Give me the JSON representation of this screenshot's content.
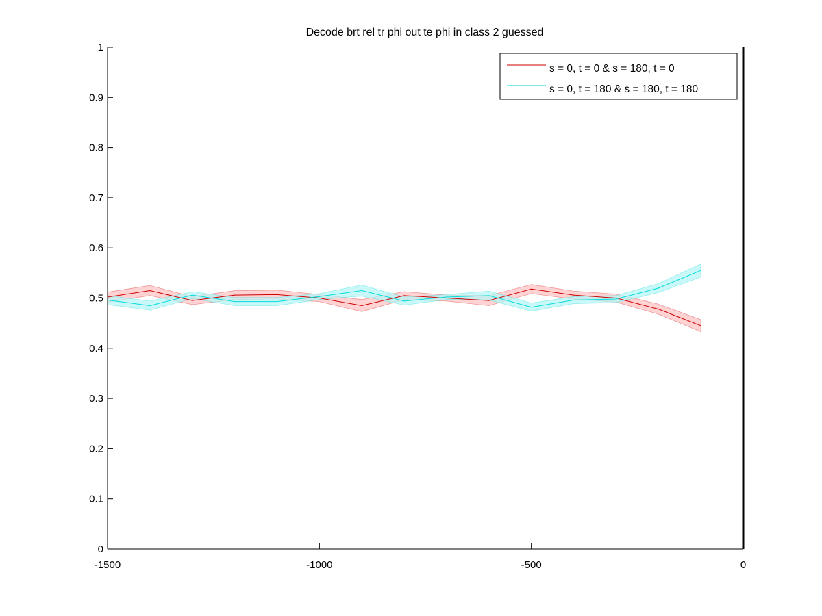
{
  "chart_data": {
    "type": "line",
    "title": "Decode brt rel tr phi out te phi in  class 2 guessed",
    "xlabel": "",
    "ylabel": "",
    "xlim": [
      -1500,
      0
    ],
    "ylim": [
      0,
      1
    ],
    "xticks": [
      -1500,
      -1000,
      -500,
      0
    ],
    "yticks": [
      0,
      0.1,
      0.2,
      0.3,
      0.4,
      0.5,
      0.6,
      0.7,
      0.8,
      0.9,
      1
    ],
    "xtick_labels": [
      "-1500",
      "-1000",
      "-500",
      "0"
    ],
    "ytick_labels": [
      "0",
      "0.1",
      "0.2",
      "0.3",
      "0.4",
      "0.5",
      "0.6",
      "0.7",
      "0.8",
      "0.9",
      "1"
    ],
    "grid": false,
    "legend_position": "top-right",
    "reference_line": 0.5,
    "vertical_marker": 0,
    "x": [
      -1500,
      -1400,
      -1300,
      -1200,
      -1100,
      -1000,
      -900,
      -800,
      -700,
      -600,
      -500,
      -400,
      -300,
      -200,
      -100
    ],
    "series": [
      {
        "name": "s = 0, t = 0 & s = 180, t = 0",
        "color": "#cc0000",
        "band_color": "#ffc4c4",
        "values": [
          0.502,
          0.515,
          0.495,
          0.506,
          0.507,
          0.5,
          0.485,
          0.505,
          0.5,
          0.495,
          0.518,
          0.506,
          0.5,
          0.478,
          0.445
        ],
        "err": [
          0.01,
          0.01,
          0.008,
          0.009,
          0.009,
          0.007,
          0.012,
          0.008,
          0.006,
          0.01,
          0.009,
          0.008,
          0.008,
          0.01,
          0.012
        ]
      },
      {
        "name": "s = 0, t = 180 & s = 180, t = 180",
        "color": "#00dddd",
        "band_color": "#b8f4f4",
        "values": [
          0.496,
          0.485,
          0.506,
          0.493,
          0.493,
          0.503,
          0.515,
          0.494,
          0.502,
          0.505,
          0.482,
          0.496,
          0.498,
          0.52,
          0.555
        ],
        "err": [
          0.009,
          0.009,
          0.007,
          0.008,
          0.008,
          0.006,
          0.011,
          0.008,
          0.005,
          0.009,
          0.008,
          0.007,
          0.007,
          0.009,
          0.013
        ]
      }
    ]
  }
}
